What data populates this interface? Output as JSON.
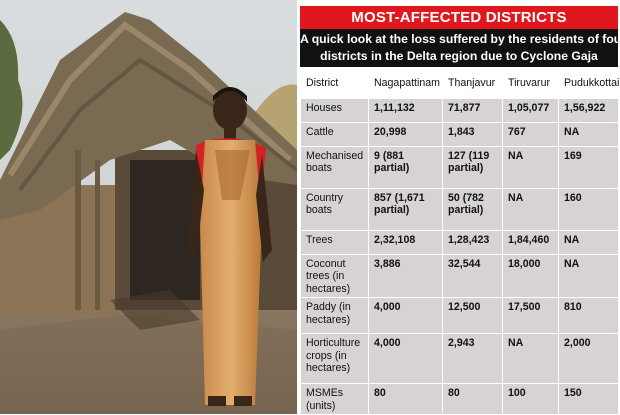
{
  "banner": "MOST-AFFECTED DISTRICTS",
  "subtitle": {
    "line1": "A quick look at the loss suffered by the residents of four",
    "line2": "districts in the Delta region due to Cyclone Gaja"
  },
  "table": {
    "headers": [
      "District",
      "Nagapattinam",
      "Thanjavur",
      "Tiruvarur",
      "Pudukkottai"
    ],
    "rows": [
      {
        "label": "Houses",
        "values": [
          "1,11,132",
          "71,877",
          "1,05,077",
          "1,56,922"
        ]
      },
      {
        "label": "Cattle",
        "values": [
          "20,998",
          "1,843",
          "767",
          "NA"
        ]
      },
      {
        "label": "Mechanised boats",
        "values": [
          "9 (881 partial)",
          "127 (119 partial)",
          "NA",
          "169"
        ]
      },
      {
        "label": "Country boats",
        "values": [
          "857 (1,671 partial)",
          "50 (782 partial)",
          "NA",
          "160"
        ]
      },
      {
        "label": "Trees",
        "values": [
          "2,32,108",
          "1,28,423",
          "1,84,460",
          "NA"
        ]
      },
      {
        "label": "Coconut trees (in hectares)",
        "values": [
          "3,886",
          "32,544",
          "18,000",
          "NA"
        ]
      },
      {
        "label": "Paddy (in hectares)",
        "values": [
          "4,000",
          "12,500",
          "17,500",
          "810"
        ]
      },
      {
        "label": "Horticulture crops (in hectares)",
        "values": [
          "4,000",
          "2,943",
          "NA",
          "2,000"
        ]
      },
      {
        "label": "MSMEs (units)",
        "values": [
          "80",
          "80",
          "100",
          "150"
        ]
      }
    ]
  },
  "colors": {
    "banner": "#e0181d",
    "subhead": "#111111",
    "cell": "#d6d3d2"
  }
}
